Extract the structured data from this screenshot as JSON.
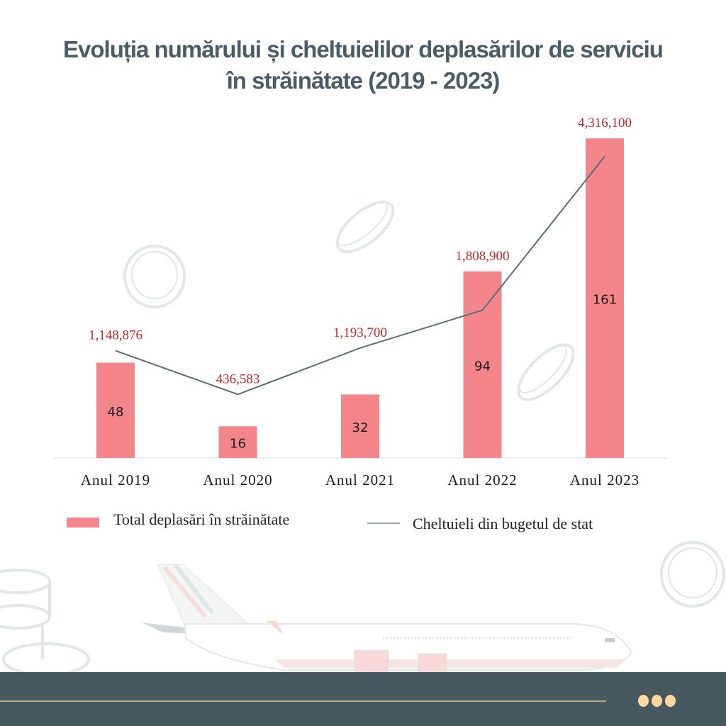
{
  "title": {
    "line1": "Evoluția numărului și cheltuielilor deplasărilor de serviciu",
    "line2": "în străinătate (2019 -  2023)"
  },
  "colors": {
    "bar": "#f4868b",
    "line": "#5b6e77",
    "line_label": "#c0272d",
    "title": "#4a5d67",
    "footer": "#48585f",
    "footer_dots": "#ffd9a0"
  },
  "chart_data": {
    "type": "bar",
    "title": "Evoluția numărului și cheltuielilor deplasărilor de serviciu în străinătate (2019 -  2023)",
    "categories": [
      "Anul 2019",
      "Anul 2020",
      "Anul 2021",
      "Anul 2022",
      "Anul 2023"
    ],
    "series": [
      {
        "name": "Total deplasări în străinătate",
        "type": "bar",
        "values": [
          48,
          16,
          32,
          94,
          161
        ],
        "labels": [
          "48",
          "16",
          "32",
          "94",
          "161"
        ]
      },
      {
        "name": "Cheltuieli din bugetul de stat",
        "type": "line",
        "axis": "secondary",
        "values": [
          1148876,
          436583,
          1193700,
          1808900,
          4316100
        ],
        "labels": [
          "1,148,876",
          "436,583",
          "1,193,700",
          "1,808,900",
          "4,316,100"
        ]
      }
    ],
    "xlabel": "",
    "ylabel": "",
    "ylim": [
      0,
      170
    ],
    "y2lim": [
      -600000,
      4900000
    ],
    "grid": false,
    "axes_visible": false,
    "legend_position": "bottom"
  },
  "legend": {
    "bar_label": "Total deplasări în străinătate",
    "line_label": "Cheltuieli din bugetul de stat"
  },
  "decorations": {
    "icons": [
      "coin-icon",
      "airplane-icon",
      "more-dots-icon"
    ]
  }
}
